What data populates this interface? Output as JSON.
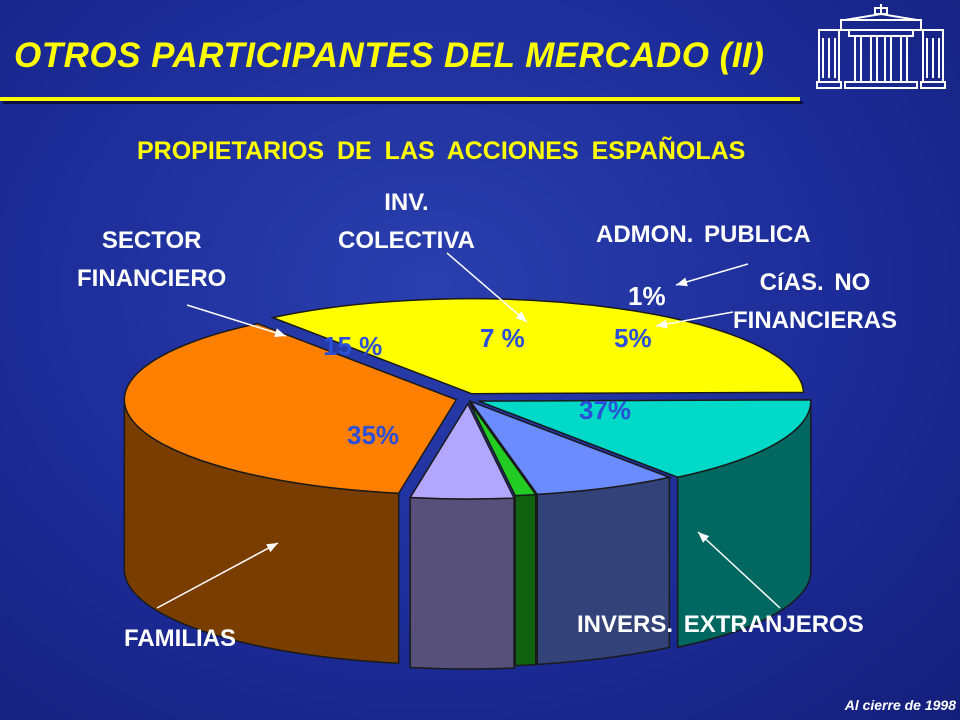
{
  "slide": {
    "title": "OTROS PARTICIPANTES DEL MERCADO  (II)",
    "footnote": "Al cierre de 1998"
  },
  "colors": {
    "background": "#1c2c98",
    "title": "#ffff00",
    "percent_labels": "#2b4fd6"
  },
  "logo": {
    "icon": "building-colonnade-icon"
  },
  "chart_data": {
    "type": "pie",
    "title": "PROPIETARIOS DE LAS ACCIONES ESPAÑOLAS",
    "style": "3d exploded pie",
    "unit": "%",
    "slices": [
      {
        "label": "INVERS. EXTRANJEROS",
        "value": 37,
        "value_label": "37%",
        "color": "#ff7f00"
      },
      {
        "label": "FAMILIAS",
        "value": 35,
        "value_label": "35%",
        "color": "#ffff00"
      },
      {
        "label": "SECTOR FINANCIERO",
        "value": 15,
        "value_label": "15 %",
        "color": "#00d9c8"
      },
      {
        "label": "INV. COLECTIVA",
        "value": 7,
        "value_label": "7 %",
        "color": "#6b8cff"
      },
      {
        "label": "ADMON. PUBLICA",
        "value": 1,
        "value_label": "1%",
        "color": "#22cc22"
      },
      {
        "label": "CíAS. NO FINANCIERAS",
        "value": 5,
        "value_label": "5%",
        "color": "#b3a6ff"
      }
    ],
    "category_labels": {
      "inv_colectiva": [
        "INV.",
        "COLECTIVA"
      ],
      "sector_financiero": [
        "SECTOR",
        "FINANCIERO"
      ],
      "admon_publica": "ADMON. PUBLICA",
      "cias_no_financieras": [
        "CíAS. NO",
        "FINANCIERAS"
      ],
      "familias": "FAMILIAS",
      "invers_extranjeros": "INVERS. EXTRANJEROS"
    }
  }
}
